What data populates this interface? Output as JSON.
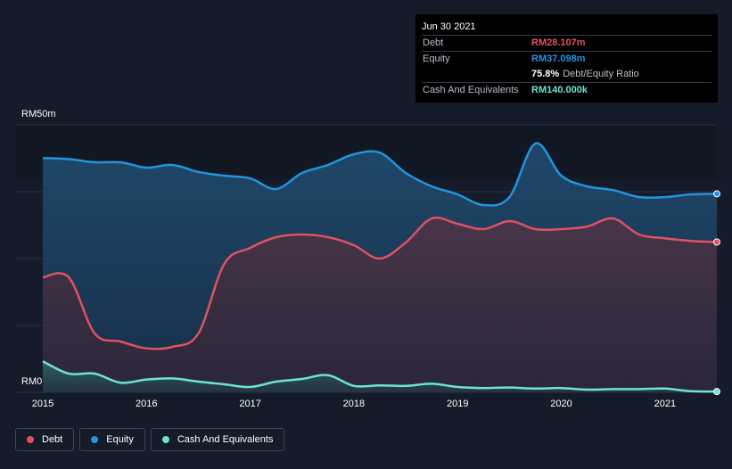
{
  "tooltip": {
    "date": "Jun 30 2021",
    "debt_label": "Debt",
    "debt_value": "RM28.107m",
    "equity_label": "Equity",
    "equity_value": "RM37.098m",
    "ratio_value": "75.8%",
    "ratio_label": "Debt/Equity Ratio",
    "cash_label": "Cash And Equivalents",
    "cash_value": "RM140.000k"
  },
  "colors": {
    "debt": "#e05263",
    "equity": "#2394df",
    "cash": "#6fe3d2",
    "debt_value_text": "#e05263",
    "equity_value_text": "#2394df",
    "cash_value_text": "#6fe3d2"
  },
  "legend": [
    {
      "label": "Debt",
      "color": "#e05263"
    },
    {
      "label": "Equity",
      "color": "#2394df"
    },
    {
      "label": "Cash And Equivalents",
      "color": "#6fe3d2"
    }
  ],
  "chart_data": {
    "type": "area",
    "y_unit": "RM m",
    "ylim": [
      0,
      50
    ],
    "y_tick_labels": [
      "RM0",
      "RM50m"
    ],
    "xlim": [
      2015.0,
      2021.5
    ],
    "x_tick_labels": [
      "2015",
      "2016",
      "2017",
      "2018",
      "2019",
      "2020",
      "2021"
    ],
    "x_ticks": [
      2015,
      2016,
      2017,
      2018,
      2019,
      2020,
      2021
    ],
    "series": [
      {
        "name": "Equity",
        "x": [
          2015.0,
          2015.25,
          2015.5,
          2015.75,
          2016.0,
          2016.25,
          2016.5,
          2016.75,
          2017.0,
          2017.25,
          2017.5,
          2017.75,
          2018.0,
          2018.25,
          2018.5,
          2018.75,
          2019.0,
          2019.25,
          2019.5,
          2019.75,
          2020.0,
          2020.25,
          2020.5,
          2020.75,
          2021.0,
          2021.25,
          2021.5
        ],
        "values": [
          43.8,
          43.6,
          43.0,
          43.0,
          42.0,
          42.5,
          41.2,
          40.5,
          40.0,
          38.0,
          41.0,
          42.5,
          44.5,
          44.8,
          41.0,
          38.5,
          37.0,
          35.0,
          36.5,
          46.5,
          40.5,
          38.5,
          37.8,
          36.5,
          36.5,
          37.0,
          37.1
        ]
      },
      {
        "name": "Debt",
        "x": [
          2015.0,
          2015.25,
          2015.5,
          2015.75,
          2016.0,
          2016.25,
          2016.5,
          2016.75,
          2017.0,
          2017.25,
          2017.5,
          2017.75,
          2018.0,
          2018.25,
          2018.5,
          2018.75,
          2019.0,
          2019.25,
          2019.5,
          2019.75,
          2020.0,
          2020.25,
          2020.5,
          2020.75,
          2021.0,
          2021.25,
          2021.5
        ],
        "values": [
          21.5,
          21.5,
          11.0,
          9.5,
          8.2,
          8.5,
          11.0,
          24.0,
          27.0,
          29.0,
          29.5,
          29.0,
          27.5,
          25.0,
          28.0,
          32.5,
          31.5,
          30.5,
          32.0,
          30.5,
          30.5,
          31.0,
          32.5,
          29.5,
          28.8,
          28.3,
          28.1
        ]
      },
      {
        "name": "Cash And Equivalents",
        "x": [
          2015.0,
          2015.25,
          2015.5,
          2015.75,
          2016.0,
          2016.25,
          2016.5,
          2016.75,
          2017.0,
          2017.25,
          2017.5,
          2017.75,
          2018.0,
          2018.25,
          2018.5,
          2018.75,
          2019.0,
          2019.25,
          2019.5,
          2019.75,
          2020.0,
          2020.25,
          2020.5,
          2020.75,
          2021.0,
          2021.25,
          2021.5
        ],
        "values": [
          5.8,
          3.5,
          3.5,
          1.8,
          2.4,
          2.6,
          2.0,
          1.5,
          1.0,
          2.0,
          2.5,
          3.2,
          1.2,
          1.3,
          1.2,
          1.6,
          1.0,
          0.8,
          0.9,
          0.7,
          0.8,
          0.5,
          0.6,
          0.6,
          0.7,
          0.2,
          0.14
        ]
      }
    ]
  }
}
